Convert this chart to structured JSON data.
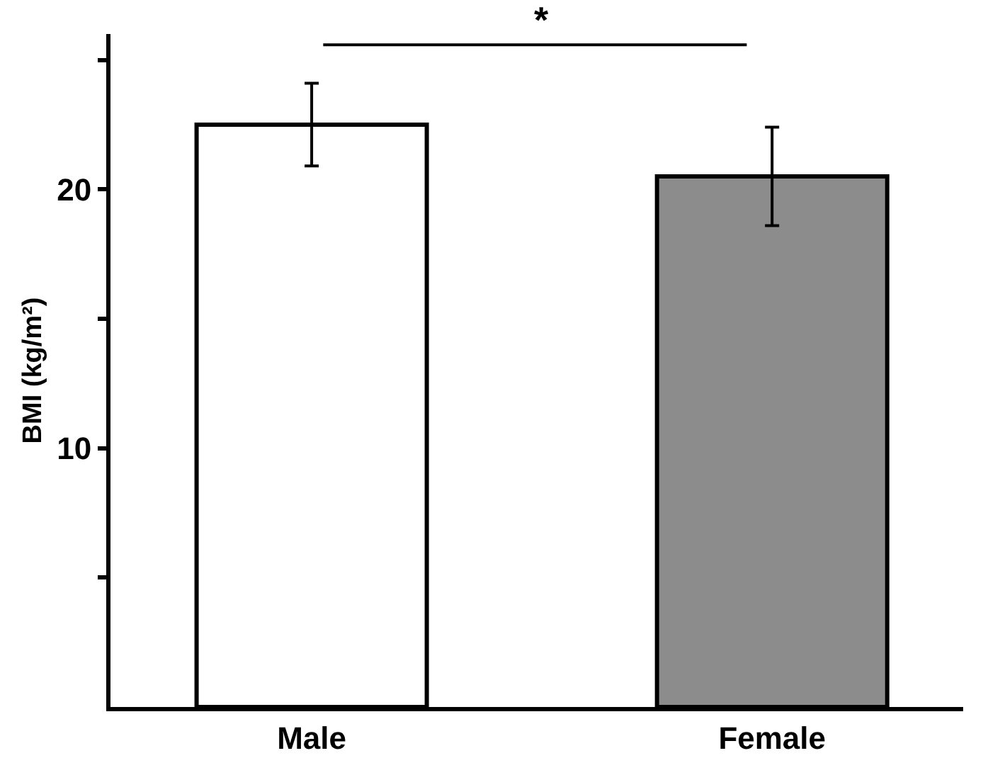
{
  "chart_data": {
    "type": "bar",
    "ylabel": "BMI (kg/m²)",
    "categories": [
      "Male",
      "Female"
    ],
    "values": [
      22.5,
      20.5
    ],
    "errors": [
      1.6,
      1.9
    ],
    "colors": [
      "#ffffff",
      "#8c8c8c"
    ],
    "ylim": [
      0,
      26
    ],
    "yticks": [
      {
        "value": 5,
        "label": null
      },
      10,
      {
        "value": 15,
        "label": null
      },
      20,
      {
        "value": 25,
        "label": null
      }
    ],
    "annotations": [
      "*"
    ],
    "grid": false
  }
}
